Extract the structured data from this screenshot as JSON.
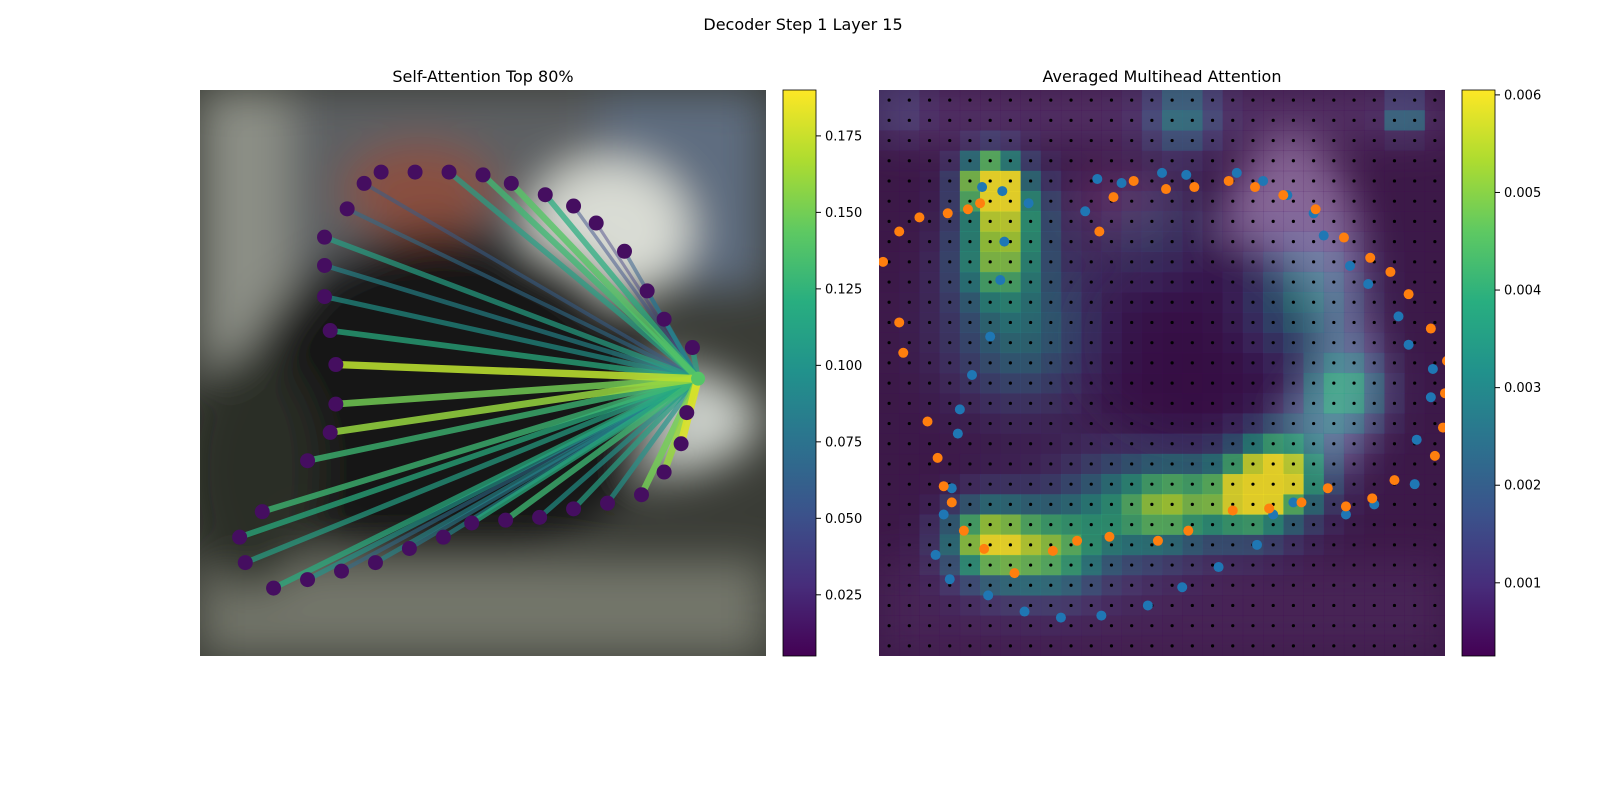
{
  "figure": {
    "title": "Decoder Step 1 Layer 15"
  },
  "chart_data": [
    {
      "type": "scatter",
      "title": "Self-Attention Top 80%",
      "panel": "left",
      "xlim": [
        0,
        1
      ],
      "ylim": [
        0,
        1
      ],
      "grid": false,
      "background": "blurred camera image",
      "source_point": {
        "x": 0.88,
        "y": 0.49
      },
      "points": [
        {
          "x": 0.32,
          "y": 0.855,
          "w": 0.0
        },
        {
          "x": 0.38,
          "y": 0.855,
          "w": 0.01
        },
        {
          "x": 0.44,
          "y": 0.855,
          "w": 0.11
        },
        {
          "x": 0.5,
          "y": 0.85,
          "w": 0.13
        },
        {
          "x": 0.55,
          "y": 0.835,
          "w": 0.14
        },
        {
          "x": 0.61,
          "y": 0.815,
          "w": 0.12
        },
        {
          "x": 0.66,
          "y": 0.795,
          "w": 0.05
        },
        {
          "x": 0.7,
          "y": 0.765,
          "w": 0.04
        },
        {
          "x": 0.75,
          "y": 0.715,
          "w": 0.06
        },
        {
          "x": 0.79,
          "y": 0.645,
          "w": 0.08
        },
        {
          "x": 0.82,
          "y": 0.595,
          "w": 0.09
        },
        {
          "x": 0.87,
          "y": 0.545,
          "w": 0.11
        },
        {
          "x": 0.86,
          "y": 0.43,
          "w": 0.14
        },
        {
          "x": 0.85,
          "y": 0.375,
          "w": 0.18
        },
        {
          "x": 0.82,
          "y": 0.325,
          "w": 0.16
        },
        {
          "x": 0.78,
          "y": 0.285,
          "w": 0.15
        },
        {
          "x": 0.72,
          "y": 0.27,
          "w": 0.1
        },
        {
          "x": 0.66,
          "y": 0.26,
          "w": 0.11
        },
        {
          "x": 0.6,
          "y": 0.245,
          "w": 0.1
        },
        {
          "x": 0.54,
          "y": 0.24,
          "w": 0.13
        },
        {
          "x": 0.48,
          "y": 0.235,
          "w": 0.12
        },
        {
          "x": 0.43,
          "y": 0.21,
          "w": 0.09
        },
        {
          "x": 0.37,
          "y": 0.19,
          "w": 0.08
        },
        {
          "x": 0.31,
          "y": 0.165,
          "w": 0.09
        },
        {
          "x": 0.25,
          "y": 0.15,
          "w": 0.07
        },
        {
          "x": 0.19,
          "y": 0.135,
          "w": 0.1
        },
        {
          "x": 0.13,
          "y": 0.12,
          "w": 0.12
        },
        {
          "x": 0.08,
          "y": 0.165,
          "w": 0.11
        },
        {
          "x": 0.07,
          "y": 0.21,
          "w": 0.12
        },
        {
          "x": 0.11,
          "y": 0.255,
          "w": 0.13
        },
        {
          "x": 0.19,
          "y": 0.345,
          "w": 0.13
        },
        {
          "x": 0.23,
          "y": 0.395,
          "w": 0.16
        },
        {
          "x": 0.24,
          "y": 0.445,
          "w": 0.15
        },
        {
          "x": 0.24,
          "y": 0.515,
          "w": 0.17
        },
        {
          "x": 0.23,
          "y": 0.575,
          "w": 0.12
        },
        {
          "x": 0.22,
          "y": 0.635,
          "w": 0.1
        },
        {
          "x": 0.22,
          "y": 0.69,
          "w": 0.09
        },
        {
          "x": 0.22,
          "y": 0.74,
          "w": 0.11
        },
        {
          "x": 0.26,
          "y": 0.79,
          "w": 0.07
        },
        {
          "x": 0.29,
          "y": 0.835,
          "w": 0.06
        }
      ],
      "colorbar": {
        "colormap": "viridis",
        "range": [
          0.005,
          0.19
        ],
        "ticks": [
          0.025,
          0.05,
          0.075,
          0.1,
          0.125,
          0.15,
          0.175
        ],
        "tick_labels": [
          "0.025",
          "0.050",
          "0.075",
          "0.100",
          "0.125",
          "0.150",
          "0.175"
        ]
      }
    },
    {
      "type": "heatmap",
      "title": "Averaged Multihead Attention",
      "panel": "right",
      "grid_size": 28,
      "xlim": [
        0,
        28
      ],
      "ylim": [
        0,
        28
      ],
      "background": "blurred camera image",
      "heat_blobs": [
        {
          "x": 5.5,
          "y": 4.5,
          "v": 0.006,
          "r": 1.0
        },
        {
          "x": 6.3,
          "y": 6.0,
          "v": 0.004,
          "r": 1.5
        },
        {
          "x": 5.8,
          "y": 8.5,
          "v": 0.0035,
          "r": 1.5
        },
        {
          "x": 7.0,
          "y": 12.0,
          "v": 0.0028,
          "r": 2.5
        },
        {
          "x": 20.0,
          "y": 19.0,
          "v": 0.0055,
          "r": 1.6
        },
        {
          "x": 18.0,
          "y": 20.2,
          "v": 0.0045,
          "r": 1.5
        },
        {
          "x": 14.5,
          "y": 20.5,
          "v": 0.0042,
          "r": 1.6
        },
        {
          "x": 11.5,
          "y": 21.0,
          "v": 0.003,
          "r": 2.0
        },
        {
          "x": 23.0,
          "y": 15.0,
          "v": 0.004,
          "r": 1.4
        },
        {
          "x": 6.5,
          "y": 22.5,
          "v": 0.004,
          "r": 1.6
        },
        {
          "x": 9.0,
          "y": 23.0,
          "v": 0.003,
          "r": 1.5
        },
        {
          "x": 4.8,
          "y": 22.3,
          "v": 0.0035,
          "r": 1.3
        },
        {
          "x": 15.0,
          "y": 1.3,
          "v": 0.003,
          "r": 1.2
        },
        {
          "x": 26.0,
          "y": 1.3,
          "v": 0.0035,
          "r": 0.6
        },
        {
          "x": 1.0,
          "y": 1.0,
          "v": 0.0012,
          "r": 1.0
        },
        {
          "x": 21.0,
          "y": 10.5,
          "v": 0.0028,
          "r": 2.0
        },
        {
          "x": 13.5,
          "y": 7.0,
          "v": 0.0015,
          "r": 2.0
        }
      ],
      "heat_base": 0.0003,
      "series": [
        {
          "name": "",
          "color": "#1f77b4",
          "points": [
            [
              10.2,
              6.0
            ],
            [
              10.8,
              4.4
            ],
            [
              12.0,
              4.6
            ],
            [
              14.0,
              4.1
            ],
            [
              15.2,
              4.2
            ],
            [
              17.7,
              4.1
            ],
            [
              19.0,
              4.5
            ],
            [
              20.2,
              5.2
            ],
            [
              21.5,
              6.1
            ],
            [
              22.0,
              7.2
            ],
            [
              23.3,
              8.7
            ],
            [
              24.2,
              9.6
            ],
            [
              25.7,
              11.2
            ],
            [
              26.2,
              12.6
            ],
            [
              27.4,
              13.8
            ],
            [
              27.3,
              15.2
            ],
            [
              26.6,
              17.3
            ],
            [
              26.5,
              19.5
            ],
            [
              24.5,
              20.5
            ],
            [
              23.1,
              21.0
            ],
            [
              20.5,
              20.4
            ],
            [
              19.5,
              21.0
            ],
            [
              18.7,
              22.5
            ],
            [
              16.8,
              23.6
            ],
            [
              15.0,
              24.6
            ],
            [
              13.3,
              25.5
            ],
            [
              11.0,
              26.0
            ],
            [
              9.0,
              26.1
            ],
            [
              7.2,
              25.8
            ],
            [
              5.4,
              25.0
            ],
            [
              3.5,
              24.2
            ],
            [
              2.8,
              23.0
            ],
            [
              3.2,
              21.0
            ],
            [
              3.6,
              19.7
            ],
            [
              3.9,
              17.0
            ],
            [
              4.0,
              15.8
            ],
            [
              4.6,
              14.1
            ],
            [
              5.5,
              12.2
            ],
            [
              6.0,
              9.4
            ],
            [
              6.2,
              7.5
            ],
            [
              7.4,
              5.6
            ],
            [
              6.1,
              5.0
            ],
            [
              5.1,
              4.8
            ]
          ]
        },
        {
          "name": "",
          "color": "#ff7f0e",
          "points": [
            [
              10.9,
              7.0
            ],
            [
              11.6,
              5.3
            ],
            [
              12.6,
              4.5
            ],
            [
              14.2,
              4.9
            ],
            [
              15.6,
              4.8
            ],
            [
              17.3,
              4.5
            ],
            [
              18.6,
              4.8
            ],
            [
              20.0,
              5.2
            ],
            [
              21.6,
              5.9
            ],
            [
              23.0,
              7.3
            ],
            [
              24.3,
              8.3
            ],
            [
              25.3,
              9.0
            ],
            [
              26.2,
              10.1
            ],
            [
              27.3,
              11.8
            ],
            [
              28.1,
              13.4
            ],
            [
              28.0,
              15.0
            ],
            [
              27.9,
              16.7
            ],
            [
              27.5,
              18.1
            ],
            [
              25.5,
              19.3
            ],
            [
              24.4,
              20.2
            ],
            [
              23.1,
              20.6
            ],
            [
              22.2,
              19.7
            ],
            [
              20.9,
              20.4
            ],
            [
              19.3,
              20.7
            ],
            [
              17.5,
              20.8
            ],
            [
              15.3,
              21.8
            ],
            [
              13.8,
              22.3
            ],
            [
              11.4,
              22.1
            ],
            [
              9.8,
              22.3
            ],
            [
              8.6,
              22.8
            ],
            [
              6.7,
              23.9
            ],
            [
              5.2,
              22.7
            ],
            [
              4.2,
              21.8
            ],
            [
              3.6,
              20.4
            ],
            [
              3.2,
              19.6
            ],
            [
              2.9,
              18.2
            ],
            [
              2.4,
              16.4
            ],
            [
              1.2,
              13.0
            ],
            [
              1.0,
              11.5
            ],
            [
              0.2,
              8.5
            ],
            [
              -0.6,
              7.6
            ],
            [
              1.0,
              7.0
            ],
            [
              2.0,
              6.3
            ],
            [
              3.4,
              6.1
            ],
            [
              4.4,
              5.9
            ],
            [
              5.0,
              5.6
            ]
          ]
        }
      ],
      "colorbar": {
        "colormap": "viridis",
        "range": [
          0.00025,
          0.00605
        ],
        "ticks": [
          0.001,
          0.002,
          0.003,
          0.004,
          0.005,
          0.006
        ],
        "tick_labels": [
          "0.001",
          "0.002",
          "0.003",
          "0.004",
          "0.005",
          "0.006"
        ]
      }
    }
  ]
}
